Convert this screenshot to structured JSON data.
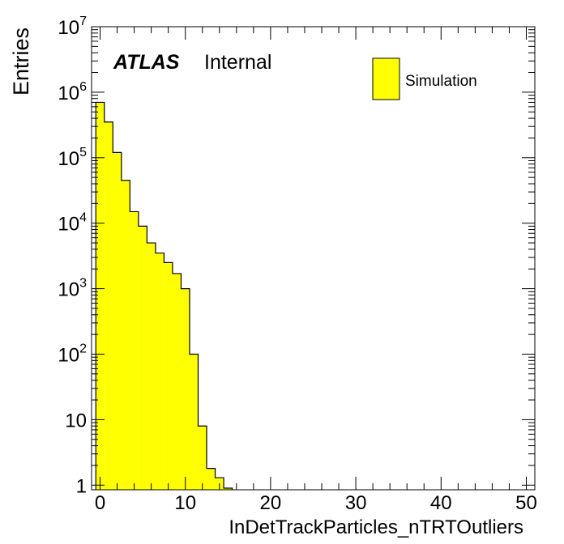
{
  "atlas_label": {
    "bold": "ATLAS",
    "normal": "Internal"
  },
  "colors": {
    "fill": "#ffff00",
    "line": "#000000",
    "background": "#ffffff"
  },
  "chart_data": {
    "type": "bar",
    "histogram": true,
    "xlabel": "InDetTrackParticles_nTRTOutliers",
    "ylabel": "Entries",
    "xlim": [
      -1,
      51
    ],
    "ylim": [
      0.85,
      10000000
    ],
    "yscale": "log",
    "bin_width": 1,
    "x_ticks": [
      0,
      10,
      20,
      30,
      40,
      50
    ],
    "y_ticks": [
      {
        "value": 1,
        "base": "1",
        "exp": ""
      },
      {
        "value": 10,
        "base": "10",
        "exp": ""
      },
      {
        "value": 100,
        "base": "10",
        "exp": "2"
      },
      {
        "value": 1000,
        "base": "10",
        "exp": "3"
      },
      {
        "value": 10000,
        "base": "10",
        "exp": "4"
      },
      {
        "value": 100000,
        "base": "10",
        "exp": "5"
      },
      {
        "value": 1000000,
        "base": "10",
        "exp": "6"
      },
      {
        "value": 10000000,
        "base": "10",
        "exp": "7"
      }
    ],
    "series": [
      {
        "name": "Simulation",
        "color": "#ffff00",
        "bin_low_edges": [
          -0.5,
          0.5,
          1.5,
          2.5,
          3.5,
          4.5,
          5.5,
          6.5,
          7.5,
          8.5,
          9.5,
          10.5,
          11.5,
          12.5,
          13.5,
          14.5
        ],
        "values": [
          700000,
          350000,
          120000,
          45000,
          15000,
          9000,
          5000,
          3500,
          2500,
          1700,
          1000,
          100,
          8,
          1.8,
          1.3,
          0.9
        ]
      }
    ],
    "legend": {
      "entries": [
        "Simulation"
      ],
      "position": "top-right"
    },
    "grid": false
  }
}
